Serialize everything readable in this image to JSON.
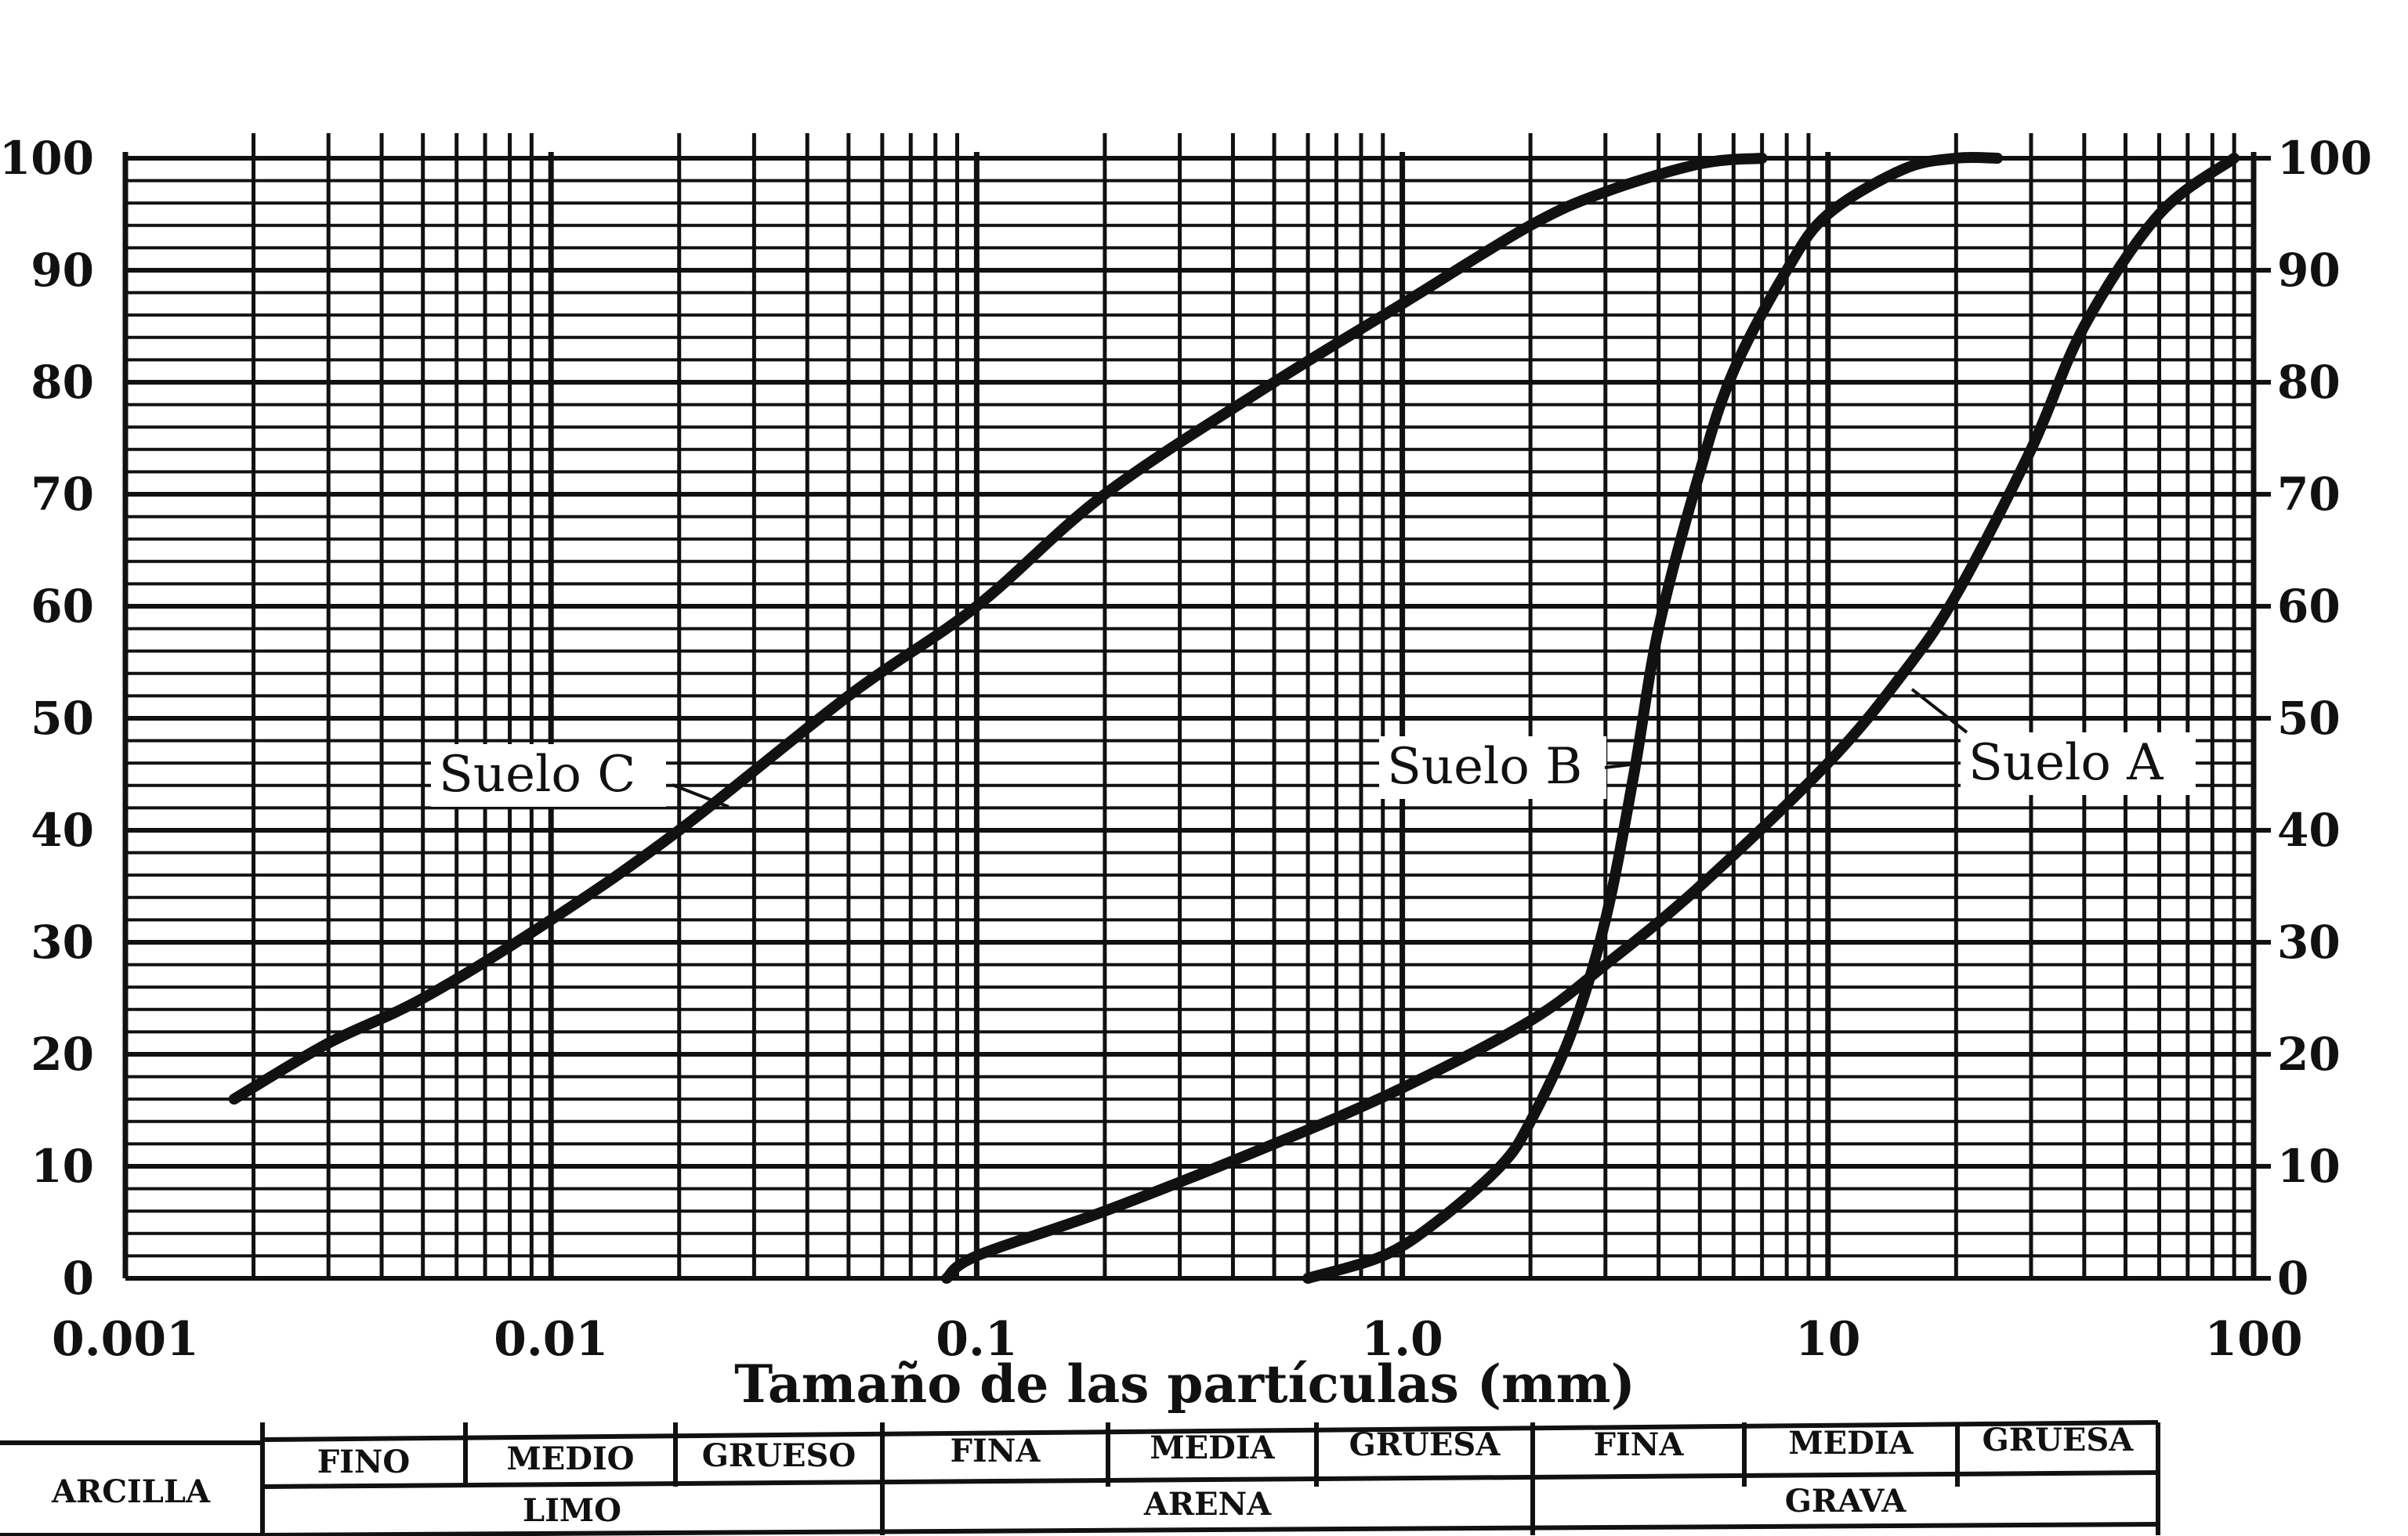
{
  "chart_data": {
    "type": "line",
    "xlabel": "Tamaño de las partículas (mm)",
    "ylabel": "",
    "xscale": "log",
    "xlim": [
      0.001,
      100
    ],
    "ylim": [
      0,
      100
    ],
    "grid": true,
    "x_tick_labels": [
      "0.001",
      "0.01",
      "0.1",
      "1.0",
      "10",
      "100"
    ],
    "y_tick_labels_left": [
      "0",
      "10",
      "20",
      "30",
      "40",
      "50",
      "60",
      "70",
      "80",
      "90",
      "100"
    ],
    "y_tick_labels_right": [
      "0",
      "10",
      "20",
      "30",
      "40",
      "50",
      "60",
      "70",
      "80",
      "90",
      "100"
    ],
    "series": [
      {
        "name": "Suelo A",
        "x": [
          0.085,
          0.1,
          0.2,
          0.5,
          1.0,
          2.0,
          3.0,
          5.0,
          10,
          15,
          20,
          30,
          40,
          60,
          90
        ],
        "y": [
          0,
          2,
          6,
          12,
          17,
          23,
          28,
          35,
          46,
          54,
          61,
          74,
          85,
          95,
          100
        ]
      },
      {
        "name": "Suelo B",
        "x": [
          0.6,
          0.9,
          1.2,
          1.7,
          2.0,
          2.5,
          3.0,
          3.5,
          4.0,
          5.0,
          6.0,
          8.0,
          10,
          15,
          20,
          25
        ],
        "y": [
          0,
          2,
          5,
          10,
          14,
          22,
          32,
          45,
          58,
          72,
          81,
          90,
          95,
          99,
          100,
          100
        ]
      },
      {
        "name": "Suelo C",
        "x": [
          0.0018,
          0.003,
          0.005,
          0.01,
          0.02,
          0.05,
          0.1,
          0.2,
          0.5,
          1.0,
          2.0,
          3.0,
          5.0,
          7.0
        ],
        "y": [
          16,
          21,
          25,
          32,
          40,
          52,
          60,
          70,
          80,
          87,
          94,
          97,
          99.5,
          100
        ]
      }
    ],
    "classification": {
      "row1": [
        "ARCILLA",
        "FINO",
        "MEDIO",
        "GRUESO",
        "FINA",
        "MEDIA",
        "GRUESA",
        "FINA",
        "MEDIA",
        "GRUESA"
      ],
      "row2": [
        "LIMO",
        "ARENA",
        "GRAVA"
      ]
    }
  }
}
